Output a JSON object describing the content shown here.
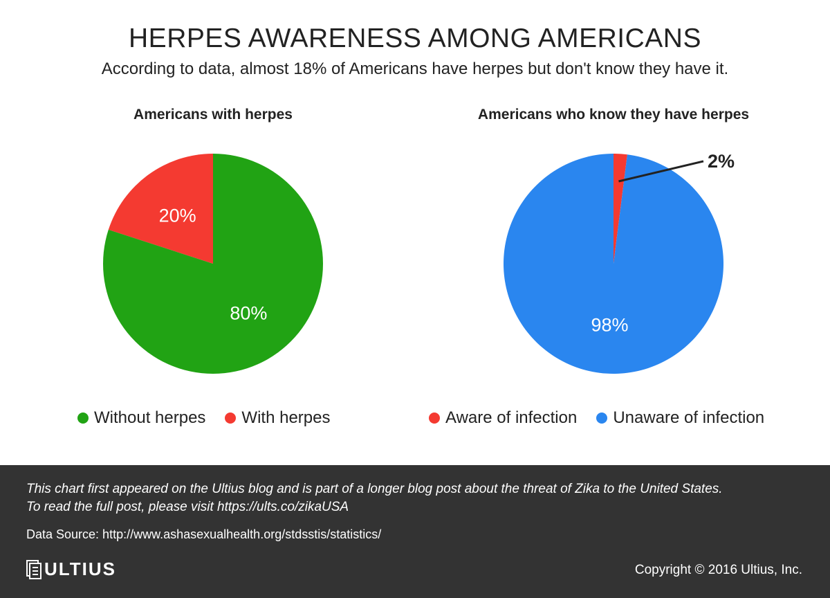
{
  "header": {
    "title": "HERPES AWARENESS AMONG AMERICANS",
    "subtitle": "According to data, almost 18% of Americans have herpes but don't know they have it."
  },
  "chart_data": [
    {
      "type": "pie",
      "title": "Americans with herpes",
      "categories": [
        "Without herpes",
        "With herpes"
      ],
      "values": [
        80,
        20
      ],
      "labels": [
        "80%",
        "20%"
      ],
      "colors": [
        "#21a314",
        "#f43a31"
      ],
      "legend_position": "bottom"
    },
    {
      "type": "pie",
      "title": "Americans who know they have herpes",
      "categories": [
        "Aware of infection",
        "Unaware of infection"
      ],
      "values": [
        2,
        98
      ],
      "labels": [
        "2%",
        "98%"
      ],
      "colors": [
        "#f43a31",
        "#2a86ef"
      ],
      "legend_position": "bottom"
    }
  ],
  "footer": {
    "note_line1": "This chart first appeared on the Ultius blog and is part of a longer blog post about the threat of Zika to the United States.",
    "note_line2": "To read the full post, please visit https://ults.co/zikaUSA",
    "source": "Data Source: http://www.ashasexualhealth.org/stdsstis/statistics/",
    "logo_text": "ULTIUS",
    "copyright": "Copyright © 2016 Ultius, Inc."
  }
}
